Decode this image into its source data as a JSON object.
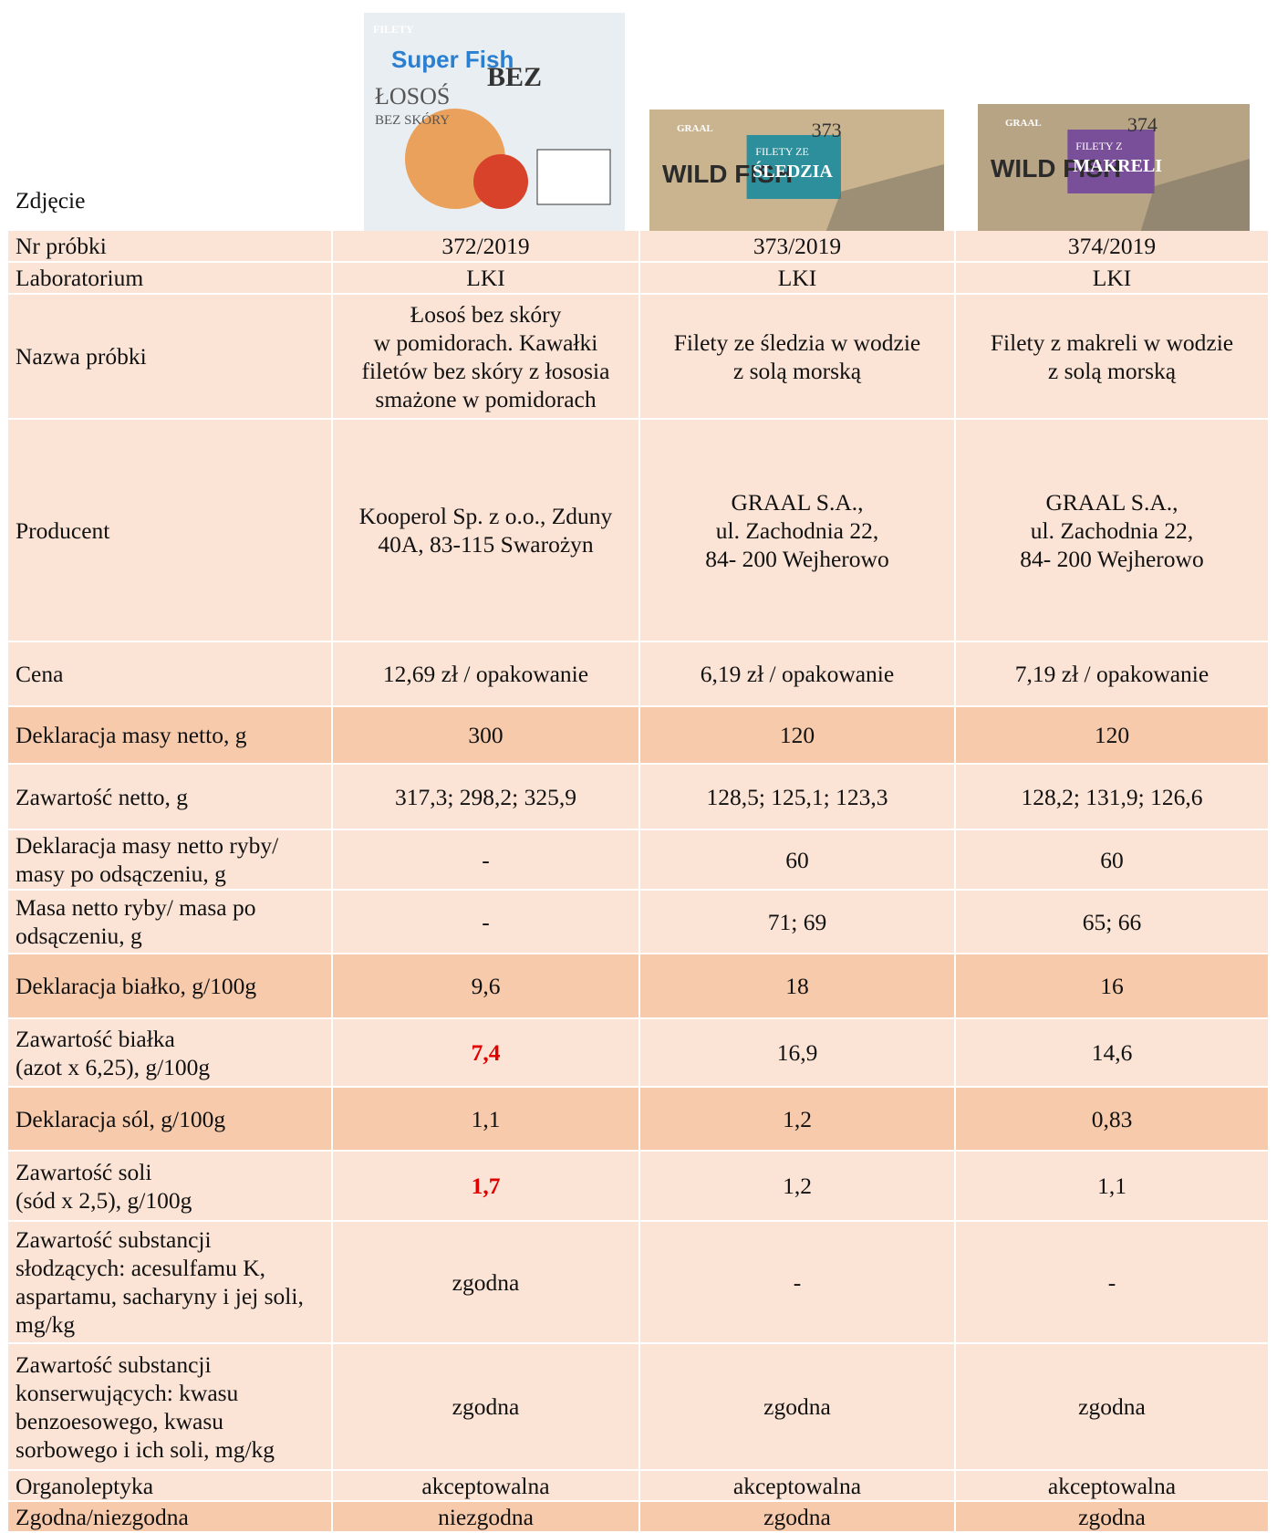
{
  "table": {
    "photo_label": "Zdjęcie",
    "photos": [
      {
        "brand": "Super Fish",
        "lines": [
          "FILETY",
          "ŁOSOŚ",
          "BEZ SKÓRY",
          "BEZ"
        ]
      },
      {
        "brand": "WILD FISH",
        "lines": [
          "GRAAL",
          "FILETY ZE",
          "ŚLEDZIA",
          "373"
        ]
      },
      {
        "brand": "WILD FISH",
        "lines": [
          "GRAAL",
          "FILETY Z",
          "MAKRELI",
          "374"
        ]
      }
    ],
    "rows": [
      [
        "Nr próbki",
        "372/2019",
        "373/2019",
        "374/2019"
      ],
      [
        "Laboratorium",
        "LKI",
        "LKI",
        "LKI"
      ],
      [
        "Nazwa próbki",
        "Łosoś bez skóry\nw pomidorach. Kawałki filetów bez skóry z łososia smażone w pomidorach",
        "Filety ze śledzia w wodzie\nz solą morską",
        "Filety z makreli w wodzie\nz solą morską"
      ],
      [
        "Producent",
        "Kooperol Sp. z o.o., Zduny 40A, 83-115 Swarożyn",
        "GRAAL S.A.,\nul.  Zachodnia 22,\n84- 200  Wejherowo",
        "GRAAL S.A.,\nul.  Zachodnia 22,\n84- 200  Wejherowo"
      ],
      [
        "Cena",
        "12,69 zł / opakowanie",
        "6,19 zł / opakowanie",
        "7,19 zł / opakowanie"
      ],
      [
        "Deklaracja masy netto, g",
        "300",
        "120",
        "120"
      ],
      [
        "Zawartość netto, g",
        "317,3; 298,2; 325,9",
        "128,5; 125,1; 123,3",
        "128,2; 131,9; 126,6"
      ],
      [
        "Deklaracja masy netto ryby/ masy po odsączeniu, g",
        "-",
        "60",
        "60"
      ],
      [
        "Masa netto ryby/ masa po odsączeniu, g",
        "-",
        "71; 69",
        "65; 66"
      ],
      [
        "Deklaracja białko, g/100g",
        "9,6",
        "18",
        "16"
      ],
      [
        "Zawartość białka\n(azot x 6,25), g/100g",
        "7,4",
        "16,9",
        "14,6"
      ],
      [
        "Deklaracja sól, g/100g",
        "1,1",
        "1,2",
        "0,83"
      ],
      [
        "Zawartość soli\n(sód x 2,5), g/100g",
        "1,7",
        "1,2",
        "1,1"
      ],
      [
        "Zawartość substancji słodzących: acesulfamu K, aspartamu, sacharyny i jej soli, mg/kg",
        "zgodna",
        "-",
        "-"
      ],
      [
        "Zawartość substancji konserwujących: kwasu benzoesowego, kwasu sorbowego i  ich soli, mg/kg",
        "zgodna",
        "zgodna",
        "zgodna"
      ],
      [
        "Organoleptyka",
        "akceptowalna",
        "akceptowalna",
        "akceptowalna"
      ],
      [
        "Zgodna/niezgodna",
        "niezgodna",
        "zgodna",
        "zgodna"
      ]
    ],
    "light_color": "#fbe4d6",
    "dark_color": "#f7caac",
    "dark_rows": [
      5,
      9,
      11,
      16
    ],
    "highlight_color": "#e00000",
    "highlighted_cells": [
      [
        10,
        1
      ],
      [
        12,
        1
      ]
    ]
  }
}
